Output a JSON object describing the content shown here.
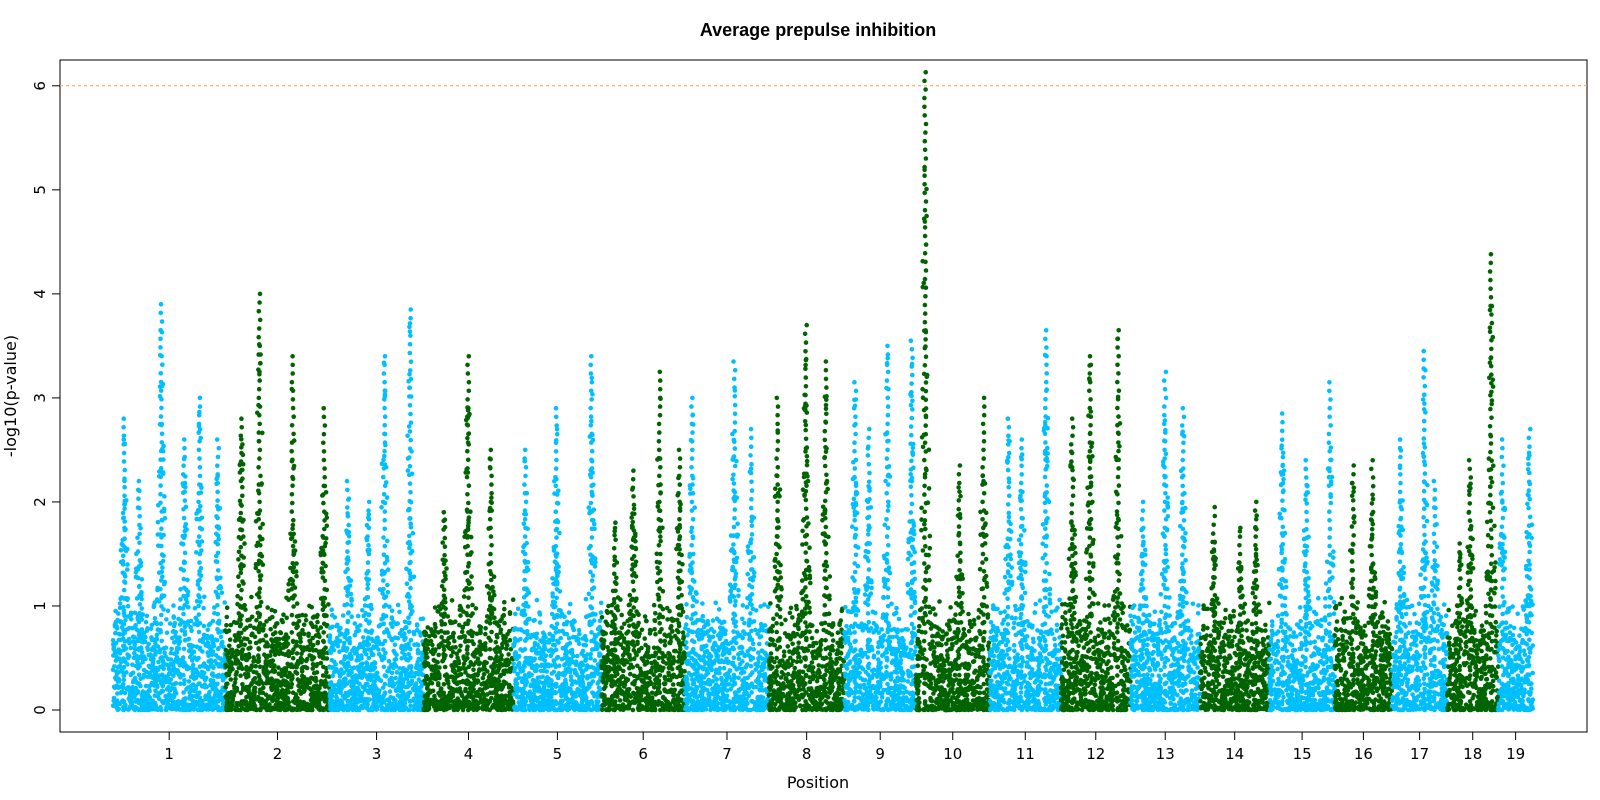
{
  "chart_data": {
    "type": "scatter",
    "title": "Average prepulse inhibition",
    "xlabel": "Position",
    "ylabel": "-log10(p-value)",
    "ylim": [
      0,
      6.2
    ],
    "yticks": [
      0,
      1,
      2,
      3,
      4,
      5,
      6
    ],
    "threshold": {
      "value": 6,
      "color": "#E8A060",
      "style": "dashed"
    },
    "colors": {
      "odd": "#00BFFF",
      "even": "#006400"
    },
    "grid": false,
    "legend": "none",
    "chromosomes": [
      {
        "label": "1",
        "peaks": [
          2.8,
          2.2,
          3.9,
          2.6,
          3.0,
          2.6
        ],
        "max": 3.88
      },
      {
        "label": "2",
        "peaks": [
          2.8,
          4.0,
          3.4,
          2.9
        ],
        "max": 4.0
      },
      {
        "label": "3",
        "peaks": [
          2.2,
          2.0,
          3.4,
          3.85
        ],
        "max": 3.85
      },
      {
        "label": "4",
        "peaks": [
          1.9,
          3.4,
          2.5
        ],
        "max": 3.44
      },
      {
        "label": "5",
        "peaks": [
          2.5,
          2.9,
          3.4
        ],
        "max": 3.4
      },
      {
        "label": "6",
        "peaks": [
          1.8,
          2.3,
          3.25,
          2.5
        ],
        "max": 3.25
      },
      {
        "label": "7",
        "peaks": [
          3.0,
          3.35,
          2.7
        ],
        "max": 3.35
      },
      {
        "label": "8",
        "peaks": [
          3.0,
          3.7,
          3.35
        ],
        "max": 3.68
      },
      {
        "label": "9",
        "peaks": [
          3.15,
          2.7,
          3.5,
          3.55
        ],
        "max": 3.55
      },
      {
        "label": "10",
        "peaks": [
          6.13,
          2.35,
          3.0
        ],
        "max": 6.13
      },
      {
        "label": "11",
        "peaks": [
          2.8,
          2.6,
          3.65
        ],
        "max": 3.65
      },
      {
        "label": "12",
        "peaks": [
          2.8,
          3.4,
          3.65
        ],
        "max": 3.65
      },
      {
        "label": "13",
        "peaks": [
          2.0,
          3.25,
          2.9
        ],
        "max": 3.25
      },
      {
        "label": "14",
        "peaks": [
          1.95,
          1.75,
          2.0
        ],
        "max": 2.0
      },
      {
        "label": "15",
        "peaks": [
          2.85,
          2.4,
          3.15
        ],
        "max": 3.15
      },
      {
        "label": "16",
        "peaks": [
          2.35,
          2.4
        ],
        "max": 2.4
      },
      {
        "label": "17",
        "peaks": [
          2.6,
          3.45,
          2.2
        ],
        "max": 3.45
      },
      {
        "label": "18",
        "peaks": [
          1.6,
          2.4,
          4.38
        ],
        "max": 4.38
      },
      {
        "label": "19",
        "peaks": [
          2.6,
          2.7
        ],
        "max": 2.7
      }
    ]
  }
}
